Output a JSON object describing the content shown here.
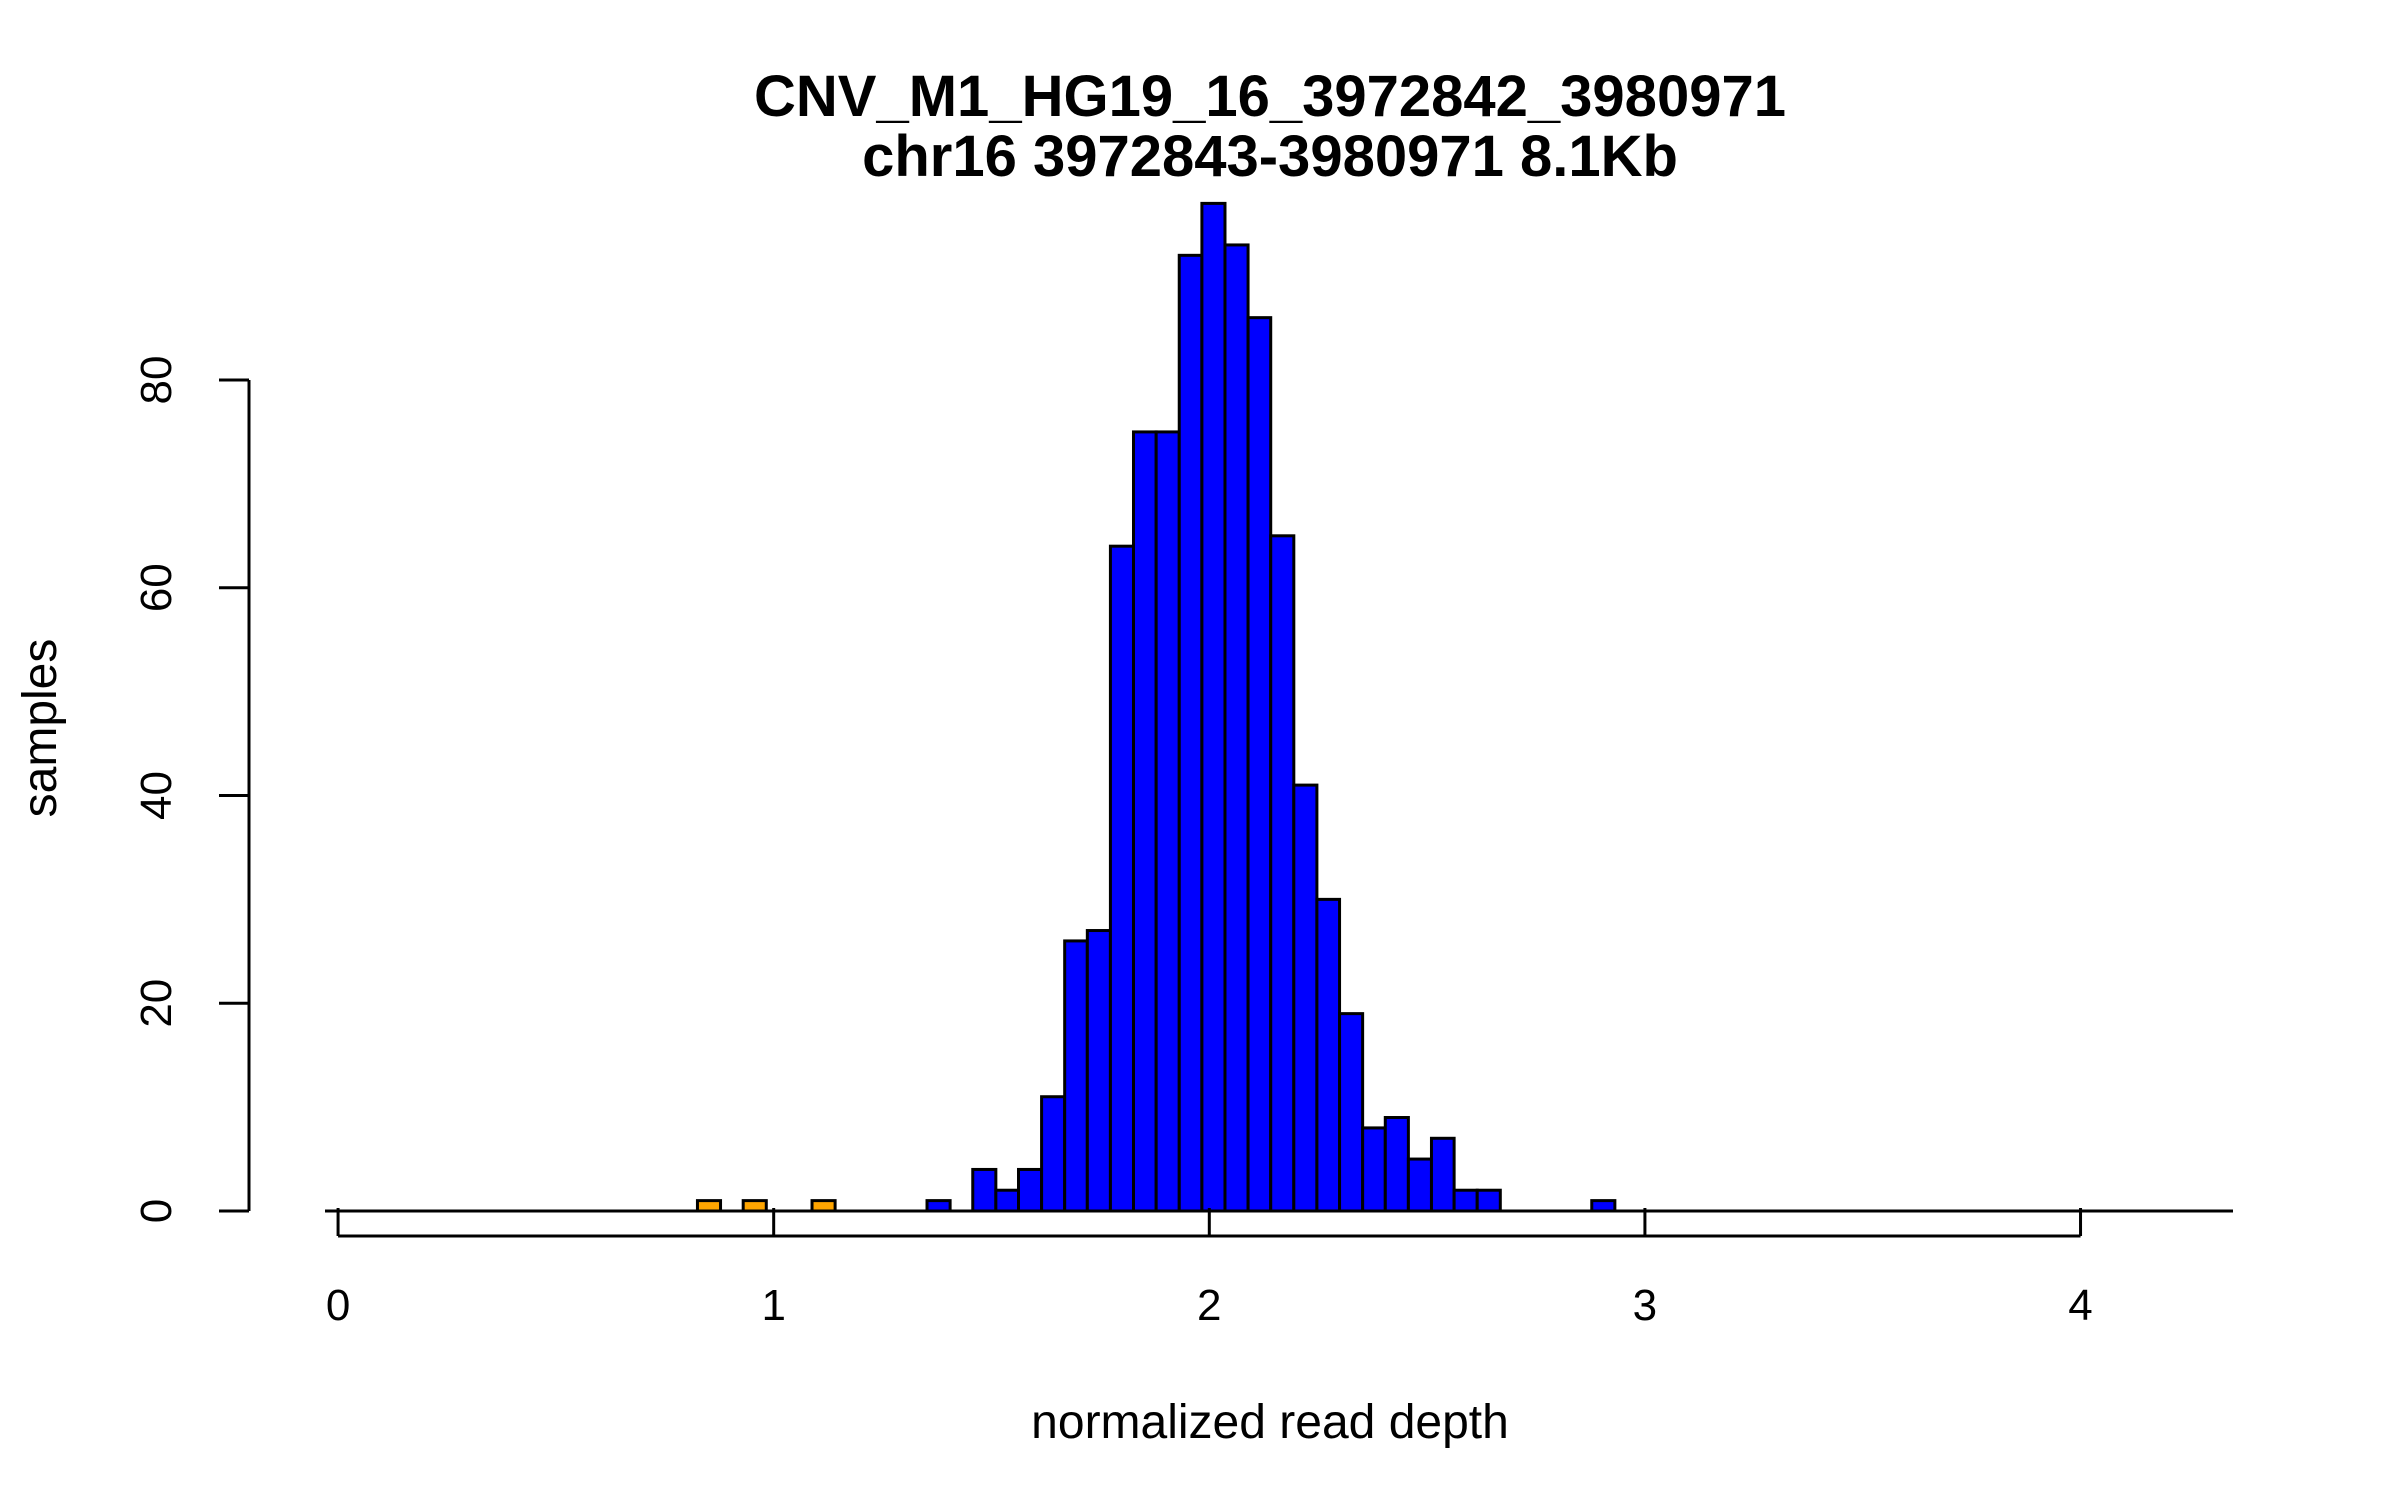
{
  "chart_data": {
    "type": "bar",
    "title": "CNV_M1_HG19_16_3972842_3980971",
    "subtitle": "chr16 3972843-3980971 8.1Kb",
    "xlabel": "normalized read depth",
    "ylabel": "samples",
    "xlim": [
      -0.03,
      4.35
    ],
    "ylim": [
      0,
      98
    ],
    "x_ticks": [
      0,
      1,
      2,
      3,
      4
    ],
    "x_tick_labels": [
      "0",
      "1",
      "2",
      "3",
      "4"
    ],
    "y_ticks": [
      0,
      20,
      40,
      60,
      80
    ],
    "y_tick_labels": [
      "0",
      "20",
      "40",
      "60",
      "80"
    ],
    "grid": false,
    "bin_width": 0.0526,
    "colors": {
      "low": "#ffa500",
      "normal": "#0000ff",
      "outline": "#000000",
      "baseline": "#000000"
    },
    "bins": [
      {
        "x0": 0.825,
        "x1": 0.878,
        "count": 1,
        "group": "low"
      },
      {
        "x0": 0.93,
        "x1": 0.983,
        "count": 1,
        "group": "low"
      },
      {
        "x0": 1.088,
        "x1": 1.141,
        "count": 1,
        "group": "low"
      },
      {
        "x0": 1.352,
        "x1": 1.405,
        "count": 1,
        "group": "normal"
      },
      {
        "x0": 1.457,
        "x1": 1.51,
        "count": 4,
        "group": "normal"
      },
      {
        "x0": 1.51,
        "x1": 1.562,
        "count": 2,
        "group": "normal"
      },
      {
        "x0": 1.562,
        "x1": 1.615,
        "count": 4,
        "group": "normal"
      },
      {
        "x0": 1.615,
        "x1": 1.668,
        "count": 11,
        "group": "normal"
      },
      {
        "x0": 1.668,
        "x1": 1.72,
        "count": 26,
        "group": "normal"
      },
      {
        "x0": 1.72,
        "x1": 1.773,
        "count": 27,
        "group": "normal"
      },
      {
        "x0": 1.773,
        "x1": 1.826,
        "count": 64,
        "group": "normal"
      },
      {
        "x0": 1.826,
        "x1": 1.878,
        "count": 75,
        "group": "normal"
      },
      {
        "x0": 1.878,
        "x1": 1.931,
        "count": 75,
        "group": "normal"
      },
      {
        "x0": 1.931,
        "x1": 1.983,
        "count": 92,
        "group": "normal"
      },
      {
        "x0": 1.983,
        "x1": 2.036,
        "count": 97,
        "group": "normal"
      },
      {
        "x0": 2.036,
        "x1": 2.089,
        "count": 93,
        "group": "normal"
      },
      {
        "x0": 2.089,
        "x1": 2.141,
        "count": 86,
        "group": "normal"
      },
      {
        "x0": 2.141,
        "x1": 2.194,
        "count": 65,
        "group": "normal"
      },
      {
        "x0": 2.194,
        "x1": 2.247,
        "count": 41,
        "group": "normal"
      },
      {
        "x0": 2.247,
        "x1": 2.299,
        "count": 30,
        "group": "normal"
      },
      {
        "x0": 2.299,
        "x1": 2.352,
        "count": 19,
        "group": "normal"
      },
      {
        "x0": 2.352,
        "x1": 2.404,
        "count": 8,
        "group": "normal"
      },
      {
        "x0": 2.404,
        "x1": 2.457,
        "count": 9,
        "group": "normal"
      },
      {
        "x0": 2.457,
        "x1": 2.51,
        "count": 5,
        "group": "normal"
      },
      {
        "x0": 2.51,
        "x1": 2.562,
        "count": 7,
        "group": "normal"
      },
      {
        "x0": 2.562,
        "x1": 2.615,
        "count": 2,
        "group": "normal"
      },
      {
        "x0": 2.615,
        "x1": 2.668,
        "count": 2,
        "group": "normal"
      },
      {
        "x0": 2.878,
        "x1": 2.931,
        "count": 1,
        "group": "normal"
      }
    ]
  }
}
